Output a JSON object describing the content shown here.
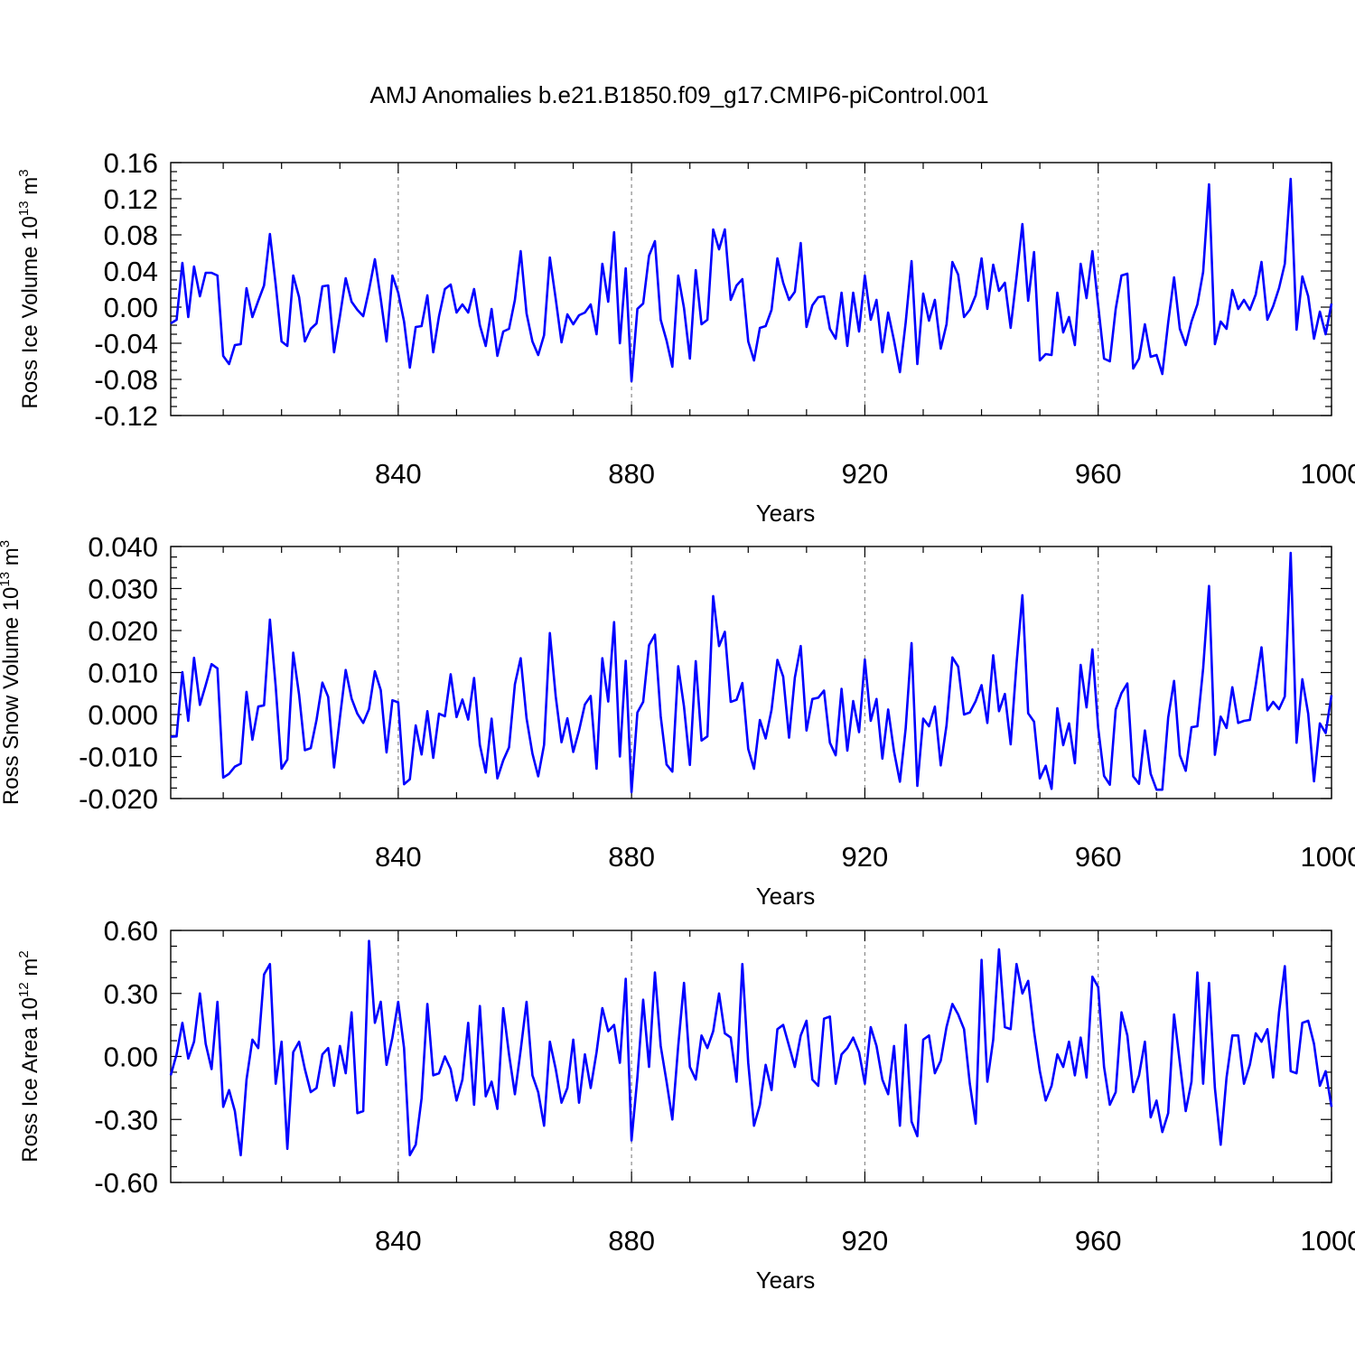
{
  "chart_data": {
    "title": "AMJ Anomalies b.e21.B1850.f09_g17.CMIP6-piControl.001",
    "type": "line",
    "line_color": "#0000ff",
    "x_range": [
      801,
      1000
    ],
    "x_ticks": [
      840,
      880,
      920,
      960,
      1000
    ],
    "grid": "dashed vertical lines at 840, 880, 920, 960",
    "panels": [
      {
        "type": "line",
        "ylabel": "Ross Ice Volume 10",
        "ylabel_exp": "13",
        "ylabel_unit": "m",
        "ylabel_unit_exp": "3",
        "xlabel": "Years",
        "ylim": [
          -0.12,
          0.16
        ],
        "y_ticks": [
          "0.16",
          "0.12",
          "0.08",
          "0.04",
          "0.00",
          "-0.04",
          "-0.08",
          "-0.12"
        ],
        "x_tick_labels": [
          "840",
          "880",
          "920",
          "960",
          "1000"
        ],
        "values": [
          -0.018,
          -0.014,
          0.049,
          -0.011,
          0.045,
          0.012,
          0.038,
          0.038,
          0.035,
          -0.054,
          -0.063,
          -0.042,
          -0.041,
          0.021,
          -0.011,
          0.007,
          0.024,
          0.081,
          0.025,
          -0.038,
          -0.043,
          0.035,
          0.011,
          -0.038,
          -0.024,
          -0.018,
          0.023,
          0.024,
          -0.05,
          -0.01,
          0.032,
          0.006,
          -0.003,
          -0.01,
          0.019,
          0.053,
          0.009,
          -0.038,
          0.035,
          0.016,
          -0.016,
          -0.067,
          -0.022,
          -0.021,
          0.013,
          -0.05,
          -0.01,
          0.02,
          0.025,
          -0.006,
          0.003,
          -0.006,
          0.02,
          -0.02,
          -0.043,
          -0.002,
          -0.054,
          -0.027,
          -0.024,
          0.008,
          0.062,
          -0.007,
          -0.038,
          -0.053,
          -0.031,
          0.055,
          0.009,
          -0.039,
          -0.008,
          -0.019,
          -0.009,
          -0.006,
          0.003,
          -0.03,
          0.048,
          0.006,
          0.083,
          -0.04,
          0.043,
          -0.082,
          -0.002,
          0.004,
          0.057,
          0.073,
          -0.014,
          -0.037,
          -0.066,
          0.035,
          -0.001,
          -0.057,
          0.041,
          -0.019,
          -0.014,
          0.086,
          0.064,
          0.086,
          0.008,
          0.024,
          0.031,
          -0.038,
          -0.059,
          -0.023,
          -0.021,
          -0.003,
          0.054,
          0.027,
          0.008,
          0.017,
          0.071,
          -0.022,
          0.002,
          0.011,
          0.012,
          -0.024,
          -0.035,
          0.016,
          -0.043,
          0.016,
          -0.027,
          0.035,
          -0.014,
          0.008,
          -0.05,
          -0.006,
          -0.037,
          -0.072,
          -0.017,
          0.051,
          -0.063,
          0.015,
          -0.015,
          0.008,
          -0.046,
          -0.019,
          0.05,
          0.036,
          -0.011,
          -0.003,
          0.013,
          0.054,
          -0.002,
          0.047,
          0.018,
          0.027,
          -0.023,
          0.033,
          0.092,
          0.007,
          0.061,
          -0.059,
          -0.052,
          -0.053,
          0.016,
          -0.028,
          -0.011,
          -0.042,
          0.048,
          0.01,
          0.062,
          0.002,
          -0.057,
          -0.06,
          -0.002,
          0.035,
          0.037,
          -0.068,
          -0.057,
          -0.019,
          -0.055,
          -0.053,
          -0.074,
          -0.017,
          0.033,
          -0.024,
          -0.042,
          -0.016,
          0.003,
          0.039,
          0.136,
          -0.041,
          -0.016,
          -0.024,
          0.019,
          -0.002,
          0.008,
          -0.003,
          0.014,
          0.05,
          -0.014,
          0.001,
          0.021,
          0.048,
          0.142,
          -0.025,
          0.034,
          0.012,
          -0.035,
          -0.005,
          -0.03,
          0.004
        ]
      },
      {
        "type": "line",
        "ylabel": "Ross Snow Volume 10",
        "ylabel_exp": "13",
        "ylabel_unit": "m",
        "ylabel_unit_exp": "3",
        "xlabel": "Years",
        "ylim": [
          -0.02,
          0.04
        ],
        "y_ticks": [
          "0.040",
          "0.030",
          "0.020",
          "0.010",
          "0.000",
          "-0.010",
          "-0.020"
        ],
        "x_tick_labels": [
          "840",
          "880",
          "920",
          "960",
          "1000"
        ],
        "values": [
          -0.0053,
          -0.0052,
          0.0101,
          -0.0015,
          0.0135,
          0.0023,
          0.007,
          0.012,
          0.011,
          -0.015,
          -0.0141,
          -0.0124,
          -0.0117,
          0.0054,
          -0.006,
          0.0019,
          0.0022,
          0.0226,
          0.0067,
          -0.0129,
          -0.0107,
          0.0147,
          0.0047,
          -0.0085,
          -0.008,
          -0.0013,
          0.0076,
          0.0042,
          -0.0126,
          -0.0007,
          0.0106,
          0.0038,
          0.0002,
          -0.002,
          0.0013,
          0.0103,
          0.0058,
          -0.009,
          0.0034,
          0.0029,
          -0.0166,
          -0.0154,
          -0.0026,
          -0.0095,
          0.0008,
          -0.0103,
          0.0002,
          -0.0004,
          0.0096,
          -0.0006,
          0.0036,
          -0.0012,
          0.0087,
          -0.0072,
          -0.0138,
          -0.001,
          -0.0152,
          -0.0109,
          -0.0078,
          0.0072,
          0.0134,
          -0.0009,
          -0.0093,
          -0.0147,
          -0.0072,
          0.0194,
          0.0043,
          -0.0066,
          -0.0009,
          -0.0089,
          -0.0038,
          0.0024,
          0.0044,
          -0.0129,
          0.0134,
          0.0031,
          0.022,
          -0.01,
          0.0128,
          -0.0185,
          0.0005,
          0.003,
          0.0165,
          0.019,
          -0.0004,
          -0.0119,
          -0.0136,
          0.0115,
          0.0019,
          -0.012,
          0.0127,
          -0.0062,
          -0.0052,
          0.0282,
          0.0163,
          0.0197,
          0.003,
          0.0035,
          0.0075,
          -0.0082,
          -0.0129,
          -0.0013,
          -0.0057,
          0.0011,
          0.013,
          0.009,
          -0.0055,
          0.0088,
          0.0163,
          -0.0038,
          0.0037,
          0.004,
          0.0057,
          -0.0067,
          -0.0097,
          0.0061,
          -0.0086,
          0.0032,
          -0.0042,
          0.0131,
          -0.0015,
          0.0037,
          -0.0105,
          0.0012,
          -0.0088,
          -0.016,
          -0.0033,
          0.017,
          -0.017,
          -0.001,
          -0.0028,
          0.0019,
          -0.0121,
          -0.0026,
          0.0136,
          0.0114,
          0.0,
          0.0005,
          0.0032,
          0.007,
          -0.002,
          0.0141,
          0.0008,
          0.0049,
          -0.0071,
          0.0121,
          0.0284,
          0.0003,
          -0.0017,
          -0.0152,
          -0.0122,
          -0.0177,
          0.0015,
          -0.0073,
          -0.0021,
          -0.0116,
          0.0118,
          0.0017,
          0.0155,
          -0.0032,
          -0.0146,
          -0.0167,
          0.0012,
          0.0051,
          0.0074,
          -0.0147,
          -0.0165,
          -0.0038,
          -0.0141,
          -0.0179,
          -0.0179,
          -0.0007,
          0.008,
          -0.0097,
          -0.0134,
          -0.003,
          -0.0028,
          0.011,
          0.0306,
          -0.0096,
          -0.0005,
          -0.0032,
          0.0065,
          -0.002,
          -0.0015,
          -0.0013,
          0.007,
          0.016,
          0.001,
          0.003,
          0.0013,
          0.0043,
          0.0385,
          -0.0067,
          0.0084,
          0.0002,
          -0.0159,
          -0.0021,
          -0.0044,
          0.0046
        ]
      },
      {
        "type": "line",
        "ylabel": "Ross Ice Area 10",
        "ylabel_exp": "12",
        "ylabel_unit": "m",
        "ylabel_unit_exp": "2",
        "xlabel": "Years",
        "ylim": [
          -0.6,
          0.6
        ],
        "y_ticks": [
          "0.60",
          "0.30",
          "0.00",
          "-0.30",
          "-0.60"
        ],
        "x_tick_labels": [
          "840",
          "880",
          "920",
          "960",
          "1000"
        ],
        "values": [
          -0.09,
          0.01,
          0.16,
          -0.01,
          0.07,
          0.3,
          0.06,
          -0.06,
          0.26,
          -0.24,
          -0.16,
          -0.26,
          -0.47,
          -0.11,
          0.08,
          0.04,
          0.39,
          0.44,
          -0.13,
          0.07,
          -0.44,
          0.02,
          0.07,
          -0.06,
          -0.17,
          -0.15,
          0.01,
          0.04,
          -0.14,
          0.05,
          -0.08,
          0.21,
          -0.27,
          -0.26,
          0.55,
          0.16,
          0.26,
          -0.04,
          0.09,
          0.26,
          0.04,
          -0.47,
          -0.42,
          -0.2,
          0.25,
          -0.09,
          -0.08,
          0.0,
          -0.06,
          -0.21,
          -0.11,
          0.16,
          -0.23,
          0.24,
          -0.19,
          -0.12,
          -0.25,
          0.23,
          0.01,
          -0.18,
          0.03,
          0.26,
          -0.09,
          -0.17,
          -0.33,
          0.07,
          -0.06,
          -0.22,
          -0.15,
          0.08,
          -0.22,
          0.01,
          -0.15,
          0.02,
          0.23,
          0.12,
          0.15,
          -0.03,
          0.37,
          -0.4,
          -0.1,
          0.27,
          -0.05,
          0.4,
          0.05,
          -0.12,
          -0.3,
          0.05,
          0.35,
          -0.05,
          -0.11,
          0.1,
          0.04,
          0.12,
          0.3,
          0.11,
          0.09,
          -0.12,
          0.44,
          -0.03,
          -0.33,
          -0.23,
          -0.04,
          -0.16,
          0.13,
          0.15,
          0.05,
          -0.05,
          0.1,
          0.17,
          -0.11,
          -0.14,
          0.18,
          0.19,
          -0.13,
          0.01,
          0.04,
          0.09,
          0.02,
          -0.13,
          0.14,
          0.05,
          -0.11,
          -0.18,
          0.05,
          -0.33,
          0.15,
          -0.31,
          -0.38,
          0.08,
          0.1,
          -0.08,
          -0.02,
          0.14,
          0.25,
          0.2,
          0.13,
          -0.13,
          -0.32,
          0.46,
          -0.12,
          0.08,
          0.51,
          0.14,
          0.13,
          0.44,
          0.3,
          0.36,
          0.12,
          -0.07,
          -0.21,
          -0.14,
          0.01,
          -0.05,
          0.07,
          -0.09,
          0.09,
          -0.1,
          0.38,
          0.33,
          -0.05,
          -0.23,
          -0.17,
          0.21,
          0.1,
          -0.17,
          -0.09,
          0.07,
          -0.29,
          -0.21,
          -0.36,
          -0.27,
          0.2,
          -0.03,
          -0.26,
          -0.12,
          0.4,
          -0.13,
          0.35,
          -0.15,
          -0.42,
          -0.1,
          0.1,
          0.1,
          -0.13,
          -0.04,
          0.11,
          0.07,
          0.13,
          -0.1,
          0.21,
          0.43,
          -0.07,
          -0.08,
          0.16,
          0.17,
          0.06,
          -0.14,
          -0.07,
          -0.24
        ]
      }
    ]
  }
}
